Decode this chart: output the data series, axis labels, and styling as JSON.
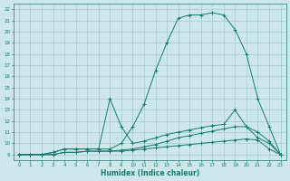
{
  "xlabel": "Humidex (Indice chaleur)",
  "ylabel": "",
  "bg_color": "#cce8e8",
  "line_color": "#1a7a6e",
  "grid_color": "#a8cccc",
  "xlim": [
    -0.5,
    23.5
  ],
  "ylim": [
    8.5,
    22.5
  ],
  "xticks": [
    0,
    1,
    2,
    3,
    4,
    5,
    6,
    7,
    8,
    9,
    10,
    11,
    12,
    13,
    14,
    15,
    16,
    17,
    18,
    19,
    20,
    21,
    22,
    23
  ],
  "yticks": [
    9,
    10,
    11,
    12,
    13,
    14,
    15,
    16,
    17,
    18,
    19,
    20,
    21,
    22
  ],
  "lines": [
    {
      "x": [
        0,
        1,
        2,
        3,
        4,
        5,
        6,
        7,
        8,
        9,
        10,
        11,
        12,
        13,
        14,
        15,
        16,
        17,
        18,
        19,
        20,
        21,
        22,
        23
      ],
      "y": [
        9.0,
        9.0,
        9.0,
        9.2,
        9.5,
        9.5,
        9.5,
        9.5,
        9.5,
        10.0,
        11.5,
        13.5,
        16.5,
        19.0,
        21.2,
        21.5,
        21.5,
        21.7,
        21.5,
        20.2,
        18.0,
        14.0,
        11.5,
        9.0
      ]
    },
    {
      "x": [
        0,
        1,
        2,
        3,
        4,
        5,
        6,
        7,
        8,
        9,
        10,
        11,
        12,
        13,
        14,
        15,
        16,
        17,
        18,
        19,
        20,
        21,
        22,
        23
      ],
      "y": [
        9.0,
        9.0,
        9.0,
        9.2,
        9.5,
        9.5,
        9.5,
        9.5,
        14.0,
        11.5,
        10.0,
        10.2,
        10.5,
        10.8,
        11.0,
        11.2,
        11.4,
        11.6,
        11.7,
        13.0,
        11.5,
        10.5,
        10.0,
        9.0
      ]
    },
    {
      "x": [
        0,
        1,
        2,
        3,
        4,
        5,
        6,
        7,
        8,
        9,
        10,
        11,
        12,
        13,
        14,
        15,
        16,
        17,
        18,
        19,
        20,
        21,
        22,
        23
      ],
      "y": [
        9.0,
        9.0,
        9.0,
        9.0,
        9.2,
        9.2,
        9.3,
        9.3,
        9.3,
        9.4,
        9.5,
        9.7,
        9.9,
        10.2,
        10.5,
        10.7,
        10.9,
        11.1,
        11.3,
        11.5,
        11.5,
        11.0,
        10.2,
        9.0
      ]
    },
    {
      "x": [
        0,
        1,
        2,
        3,
        4,
        5,
        6,
        7,
        8,
        9,
        10,
        11,
        12,
        13,
        14,
        15,
        16,
        17,
        18,
        19,
        20,
        21,
        22,
        23
      ],
      "y": [
        9.0,
        9.0,
        9.0,
        9.0,
        9.2,
        9.2,
        9.3,
        9.3,
        9.3,
        9.3,
        9.4,
        9.5,
        9.6,
        9.7,
        9.8,
        9.9,
        10.0,
        10.1,
        10.2,
        10.3,
        10.4,
        10.3,
        9.5,
        9.0
      ]
    }
  ]
}
